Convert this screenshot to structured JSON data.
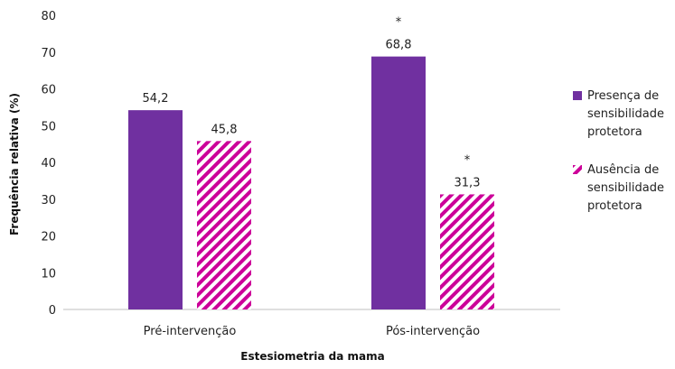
{
  "chart_data": {
    "type": "bar",
    "categories": [
      "Pré-intervenção",
      "Pós-intervenção"
    ],
    "series": [
      {
        "name": "Presença de sensibilidade protetora",
        "name_lines": [
          "Presença de",
          "sensibilidade",
          "protetora"
        ],
        "values": [
          54.2,
          68.8
        ],
        "value_labels": [
          "54,2",
          "68,8"
        ],
        "markers": [
          "",
          "*"
        ],
        "color": "#7030a0",
        "pattern": "solid"
      },
      {
        "name": "Ausência de sensibilidade protetora",
        "name_lines": [
          "Ausência de",
          "sensibilidade",
          "protetora"
        ],
        "values": [
          45.8,
          31.3
        ],
        "value_labels": [
          "45,8",
          "31,3"
        ],
        "markers": [
          "",
          "*"
        ],
        "color": "#cc0099",
        "pattern": "diagonal-stripes"
      }
    ],
    "xlabel": "Estesiometria da mama",
    "ylabel": "Frequência relativa (%)",
    "ylim": [
      0,
      80
    ],
    "yticks": [
      0,
      10,
      20,
      30,
      40,
      50,
      60,
      70,
      80
    ],
    "legend_position": "right",
    "grid": false
  }
}
